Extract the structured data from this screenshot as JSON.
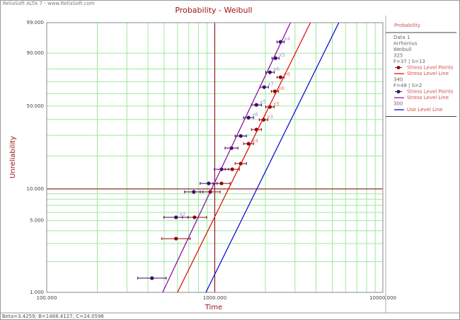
{
  "header": "ReliaSoft ALTA 7 - www.ReliaSoft.com",
  "status": "Beta=3.4259; B=1488.4127; C=24.0596",
  "chart_data": {
    "type": "scatter",
    "title": "Probability - Weibull",
    "x_label": "Time",
    "y_label": "Unreliability",
    "xscale": "log",
    "yscale": "weibull",
    "xlim": [
      100,
      10000
    ],
    "ylim": [
      1,
      99
    ],
    "xticks": [
      {
        "value": 100,
        "label": "100.000"
      },
      {
        "value": 1000,
        "label": "1000.000"
      },
      {
        "value": 10000,
        "label": "10000.000"
      }
    ],
    "yticks": [
      {
        "value": 1,
        "label": "1.000"
      },
      {
        "value": 5,
        "label": "5.000"
      },
      {
        "value": 10,
        "label": "10.000"
      },
      {
        "value": 50,
        "label": "50.000"
      },
      {
        "value": 90,
        "label": "90.000"
      },
      {
        "value": 99,
        "label": "99.000"
      }
    ],
    "grid": true,
    "grid_color": "#9ee89e",
    "crosshair": {
      "x": 1000,
      "y": 10,
      "color": "#800000"
    },
    "legend": {
      "title": "Probability",
      "lines": [
        "Data 1",
        "Arrhenius",
        "Weibull"
      ]
    },
    "groups": [
      {
        "stress": "325",
        "counts": "F=37 | S=13",
        "series": [
          {
            "name": "Stress Level Points",
            "kind": "points",
            "color": "#8b0a0a",
            "label_color": "#e08080",
            "x": [
              588,
              758,
              939,
              1097,
              1270,
              1427,
              1588,
              1768,
              1950,
              2128,
              2277,
              2462
            ],
            "values": [
              3.35,
              5.38,
              9.39,
              11.26,
              15.19,
              17.1,
              25.5,
              33.4,
              39.8,
              49.3,
              62.0,
              73.6
            ],
            "x_lower": [
              484,
              642,
              819,
              976,
              1152,
              1320,
              1483,
              1651,
              1840,
              2008,
              2169,
              2345
            ],
            "x_upper": [
              714,
              894,
              1076,
              1233,
              1400,
              1543,
              1701,
              1894,
              2067,
              2256,
              2391,
              2585
            ],
            "point_labels": [
              null,
              null,
              null,
              null,
              null,
              null,
              "x4",
              null,
              "x3",
              "x5",
              "x6",
              "x6"
            ]
          },
          {
            "name": "Stress Level Line",
            "kind": "line",
            "color": "#e00000",
            "x": [
              600,
              3707
            ],
            "values": [
              1,
              99
            ]
          }
        ]
      },
      {
        "stress": "340",
        "counts": "F=48 | S=2",
        "series": [
          {
            "name": "Stress Level Points",
            "kind": "points",
            "color": "#3a0a6a",
            "label_color": "#b090d8",
            "x": [
              423,
              588,
              750,
              920,
              1097,
              1257,
              1427,
              1588,
              1768,
              1968,
              2128,
              2297,
              2462
            ],
            "values": [
              1.38,
              5.38,
              9.39,
              11.26,
              15.19,
              23.4,
              29.6,
              41.3,
              50.9,
              65.5,
              77.5,
              87.2,
              94.9
            ],
            "x_lower": [
              348,
              498,
              661,
              818,
              995,
              1151,
              1320,
              1483,
              1651,
              1857,
              2008,
              2188,
              2345
            ],
            "x_upper": [
              514,
              694,
              851,
              1034,
              1209,
              1373,
              1543,
              1701,
              1894,
              2086,
              2256,
              2412,
              2585
            ],
            "point_labels": [
              null,
              "x2",
              null,
              null,
              null,
              null,
              null,
              "x6",
              "x5",
              "x7",
              "x6",
              "x5",
              "x4"
            ]
          },
          {
            "name": "Stress Level Line",
            "kind": "line",
            "color": "#8a00a0",
            "x": [
              489,
              2820
            ],
            "values": [
              1,
              99
            ]
          }
        ]
      },
      {
        "stress": "300",
        "series": [
          {
            "name": "Use Level Line",
            "kind": "line",
            "color": "#0000d0",
            "x": [
              885,
              5470
            ],
            "values": [
              1,
              99
            ]
          }
        ]
      }
    ]
  }
}
